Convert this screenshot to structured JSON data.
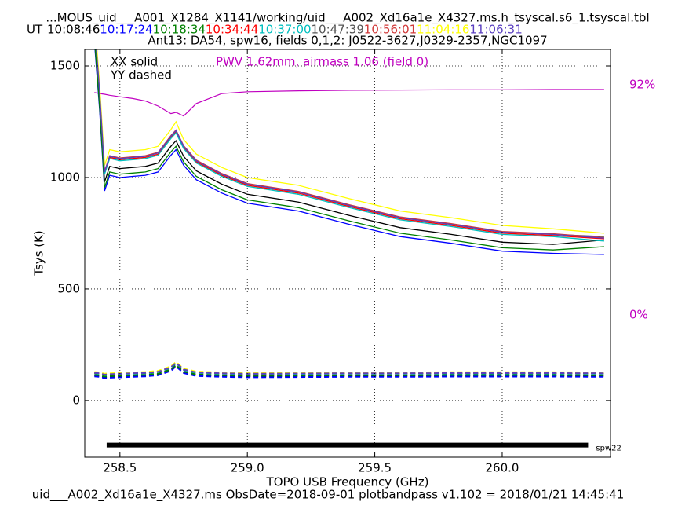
{
  "chart_data": {
    "type": "line",
    "title": "...MOUS_uid___A001_X1284_X1141/working/uid___A002_Xd16a1e_X4327.ms.h_tsyscal.s6_1.tsyscal.tbl",
    "time_prefix": "UT",
    "subtitle": "Ant13: DA54,  spw16,  fields 0,1,2: J0522-3627,J0329-2357,NGC1097",
    "x_label": "TOPO USB Frequency (GHz)",
    "y_label": "Tsys (K)",
    "footer": "uid___A002_Xd16a1e_X4327.ms  ObsDate=2018-09-01   plotbandpass v1.102 = 2018/01/21 14:45:41",
    "annotations": [
      "XX solid",
      "YY dashed"
    ],
    "pwv_note": "PWV 1.62mm, airmass 1.06 (field 0)",
    "xlim": [
      258.362,
      260.425
    ],
    "ylim": [
      -254,
      1574
    ],
    "y2lim": [
      -56.8,
      106.1
    ],
    "xticks": [
      {
        "value": 258.5,
        "label": "258.5"
      },
      {
        "value": 259.0,
        "label": "259.0"
      },
      {
        "value": 259.5,
        "label": "259.5"
      },
      {
        "value": 260.0,
        "label": "260.0"
      }
    ],
    "yticks": [
      0,
      500,
      1000,
      1500
    ],
    "y2ticks": [
      {
        "value": 92,
        "label": "92%"
      },
      {
        "value": 0,
        "label": "0%"
      }
    ],
    "grid": true,
    "x": [
      258.4,
      258.42,
      258.44,
      258.46,
      258.5,
      258.55,
      258.6,
      258.65,
      258.7,
      258.72,
      258.75,
      258.8,
      258.9,
      259.0,
      259.2,
      259.4,
      259.6,
      259.8,
      260.0,
      260.2,
      260.4
    ],
    "series": [
      {
        "name": "10:08:46",
        "color": "#000000",
        "values": [
          1650,
          1350,
          980,
          1050,
          1040,
          1045,
          1050,
          1065,
          1140,
          1165,
          1095,
          1030,
          970,
          925,
          890,
          830,
          775,
          745,
          710,
          700,
          720
        ],
        "yy_values": [
          112,
          110,
          104,
          106,
          108,
          110,
          112,
          117,
          137,
          157,
          127,
          114,
          110,
          108,
          109,
          110,
          110,
          111,
          111,
          111,
          110
        ]
      },
      {
        "name": "10:17:24",
        "color": "#0000ff",
        "values": [
          1610,
          1310,
          940,
          1010,
          1000,
          1005,
          1010,
          1025,
          1100,
          1125,
          1055,
          990,
          930,
          885,
          850,
          790,
          735,
          705,
          670,
          660,
          655
        ],
        "yy_values": [
          108,
          106,
          100,
          102,
          104,
          106,
          108,
          113,
          133,
          153,
          123,
          110,
          106,
          104,
          105,
          106,
          106,
          107,
          107,
          107,
          106
        ]
      },
      {
        "name": "10:18:34",
        "color": "#008000",
        "values": [
          1625,
          1325,
          955,
          1025,
          1015,
          1020,
          1025,
          1040,
          1115,
          1140,
          1070,
          1005,
          945,
          900,
          865,
          805,
          750,
          720,
          685,
          675,
          690
        ],
        "yy_values": [
          115,
          113,
          107,
          109,
          111,
          113,
          115,
          120,
          140,
          160,
          130,
          117,
          113,
          111,
          112,
          113,
          113,
          114,
          114,
          114,
          113
        ]
      },
      {
        "name": "10:34:44",
        "color": "#ff0000",
        "values": [
          1690,
          1390,
          1020,
          1090,
          1080,
          1085,
          1090,
          1105,
          1180,
          1205,
          1135,
          1070,
          1010,
          965,
          930,
          870,
          815,
          785,
          750,
          740,
          725
        ],
        "yy_values": [
          123,
          121,
          115,
          117,
          119,
          121,
          123,
          128,
          148,
          168,
          138,
          125,
          121,
          119,
          120,
          121,
          121,
          122,
          122,
          122,
          121
        ]
      },
      {
        "name": "10:37:00",
        "color": "#00bfbf",
        "values": [
          1685,
          1385,
          1015,
          1085,
          1075,
          1080,
          1085,
          1100,
          1175,
          1200,
          1130,
          1065,
          1005,
          960,
          925,
          865,
          810,
          780,
          745,
          735,
          715
        ],
        "yy_values": [
          122,
          120,
          114,
          116,
          118,
          120,
          122,
          127,
          147,
          167,
          137,
          124,
          120,
          118,
          119,
          120,
          120,
          121,
          121,
          121,
          120
        ]
      },
      {
        "name": "10:47:39",
        "color": "#555555",
        "values": [
          1695,
          1395,
          1025,
          1095,
          1085,
          1090,
          1095,
          1110,
          1185,
          1210,
          1140,
          1075,
          1015,
          970,
          935,
          875,
          820,
          790,
          755,
          745,
          735
        ],
        "yy_values": [
          124,
          122,
          116,
          118,
          120,
          122,
          124,
          129,
          149,
          169,
          139,
          126,
          122,
          120,
          121,
          122,
          122,
          123,
          123,
          123,
          122
        ]
      },
      {
        "name": "10:56:01",
        "color": "#d03838",
        "values": [
          1698,
          1398,
          1028,
          1098,
          1088,
          1093,
          1098,
          1113,
          1188,
          1213,
          1143,
          1078,
          1018,
          973,
          938,
          878,
          823,
          793,
          758,
          748,
          730
        ],
        "yy_values": [
          125,
          123,
          117,
          119,
          121,
          123,
          125,
          130,
          150,
          170,
          140,
          127,
          123,
          121,
          122,
          123,
          123,
          124,
          124,
          124,
          123
        ]
      },
      {
        "name": "11:04:16",
        "color": "#ffff00",
        "values": [
          1725,
          1425,
          1055,
          1125,
          1115,
          1120,
          1125,
          1140,
          1215,
          1250,
          1170,
          1105,
          1045,
          1000,
          965,
          905,
          850,
          820,
          785,
          770,
          750
        ],
        "yy_values": [
          128,
          126,
          120,
          122,
          124,
          126,
          128,
          133,
          153,
          173,
          143,
          130,
          126,
          124,
          125,
          126,
          126,
          127,
          127,
          127,
          126
        ]
      },
      {
        "name": "11:06:31",
        "color": "#5a3fc0",
        "values": [
          1695,
          1395,
          1025,
          1095,
          1085,
          1090,
          1095,
          1110,
          1185,
          1210,
          1140,
          1075,
          1015,
          970,
          935,
          875,
          820,
          790,
          755,
          745,
          728
        ],
        "yy_values": [
          124,
          122,
          116,
          118,
          120,
          122,
          124,
          129,
          149,
          169,
          139,
          126,
          122,
          120,
          121,
          122,
          122,
          123,
          123,
          123,
          122
        ]
      }
    ],
    "transmission": {
      "axis": "y2",
      "color": "#c000c0",
      "values": [
        88.9,
        88.5,
        88.2,
        87.8,
        87.2,
        86.5,
        85.5,
        83.5,
        80.5,
        81,
        79.5,
        84.5,
        88.5,
        89.2,
        89.6,
        89.8,
        89.9,
        90,
        90,
        90.1,
        90.1
      ]
    },
    "spw_bar": {
      "label": "spw22",
      "x": [
        258.448,
        260.337
      ],
      "y": -200
    }
  }
}
